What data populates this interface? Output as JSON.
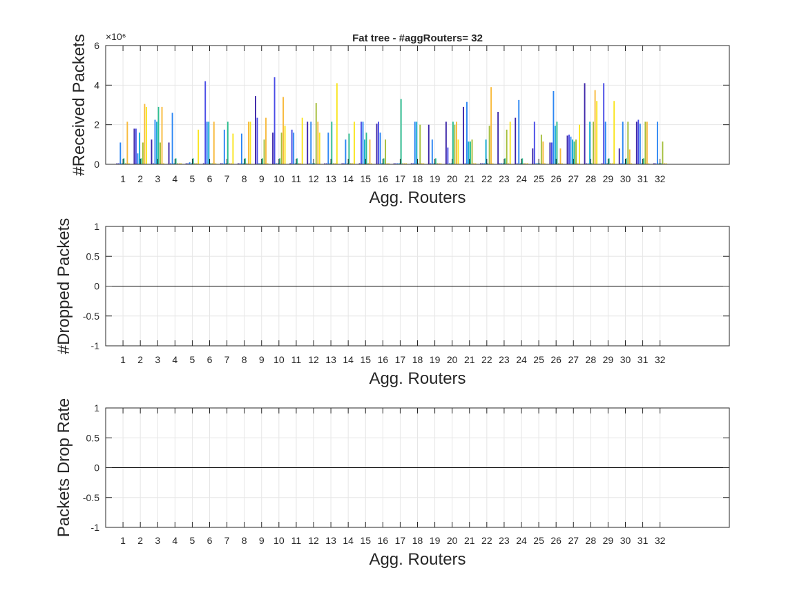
{
  "chart_data": [
    {
      "type": "bar",
      "title": "Fat tree -  #aggRouters= 32",
      "xlabel": "Agg. Routers",
      "ylabel": "#Received Packets",
      "y_exponent_label": "×10⁶",
      "categories": [
        "1",
        "2",
        "3",
        "4",
        "5",
        "6",
        "7",
        "8",
        "9",
        "10",
        "11",
        "12",
        "13",
        "14",
        "15",
        "16",
        "17",
        "18",
        "19",
        "20",
        "21",
        "22",
        "23",
        "24",
        "25",
        "26",
        "27",
        "28",
        "29",
        "30",
        "31",
        "32"
      ],
      "xlim": [
        0,
        36
      ],
      "ylim": [
        0,
        6
      ],
      "yticks": [
        0,
        2,
        4,
        6
      ],
      "ytick_labels": [
        "0",
        "2",
        "4",
        "6"
      ],
      "grid": true,
      "series_colors": [
        "#3d26a8",
        "#4a4de6",
        "#2c86f3",
        "#12aed4",
        "#2ebf92",
        "#a4be3a",
        "#f8ba3c",
        "#f9e51f"
      ],
      "values": [
        [
          0.05,
          0.05,
          1.1,
          0.05,
          0.3,
          0.05,
          2.15,
          0.05
        ],
        [
          1.8,
          1.8,
          0.55,
          1.6,
          0.3,
          1.1,
          3.05,
          2.9
        ],
        [
          1.25,
          0.05,
          2.25,
          2.15,
          2.9,
          1.1,
          2.9,
          0.05
        ],
        [
          1.1,
          0.05,
          2.6,
          0.05,
          0.3,
          0.05,
          0.05,
          0.05
        ],
        [
          0.05,
          0.05,
          0.1,
          0.05,
          0.3,
          0.05,
          0.05,
          1.75
        ],
        [
          0.05,
          4.2,
          2.15,
          2.15,
          0.05,
          0.05,
          2.15,
          0.05
        ],
        [
          0.05,
          0.05,
          1.75,
          0.05,
          2.15,
          0.05,
          0.05,
          1.55
        ],
        [
          0.05,
          0.05,
          1.55,
          0.05,
          0.3,
          0.05,
          2.15,
          2.15
        ],
        [
          3.45,
          2.35,
          0.05,
          0.05,
          0.3,
          1.25,
          2.35,
          0.05
        ],
        [
          1.6,
          4.4,
          0.05,
          0.05,
          0.3,
          1.6,
          3.4,
          1.95
        ],
        [
          0.05,
          1.75,
          1.6,
          0.05,
          0.3,
          0.05,
          0.05,
          2.35
        ],
        [
          2.15,
          0.05,
          2.15,
          0.05,
          0.05,
          3.1,
          2.15,
          1.6
        ],
        [
          0.05,
          0.05,
          1.6,
          0.05,
          2.15,
          0.05,
          0.05,
          4.1
        ],
        [
          0.05,
          0.05,
          1.25,
          0.05,
          1.55,
          0.05,
          0.05,
          2.15
        ],
        [
          0.05,
          2.15,
          2.15,
          1.25,
          1.6,
          0.05,
          1.25,
          0.05
        ],
        [
          2.05,
          2.15,
          1.6,
          0.05,
          0.3,
          1.25,
          0.05,
          0.05
        ],
        [
          0.05,
          0.05,
          0.05,
          0.05,
          3.3,
          0.05,
          0.05,
          0.05
        ],
        [
          0.05,
          0.05,
          2.15,
          2.15,
          0.05,
          2.0,
          0.05,
          0.05
        ],
        [
          2.0,
          0.05,
          1.25,
          0.05,
          0.3,
          0.05,
          0.05,
          0.05
        ],
        [
          2.15,
          0.85,
          0.05,
          0.05,
          2.15,
          2.0,
          2.15,
          1.25
        ],
        [
          2.9,
          0.05,
          3.15,
          1.15,
          1.15,
          1.25,
          0.05,
          0.05
        ],
        [
          0.05,
          0.05,
          0.05,
          1.25,
          0.05,
          1.95,
          3.9,
          0.05
        ],
        [
          2.65,
          0.05,
          0.05,
          0.05,
          0.3,
          1.75,
          0.05,
          2.15
        ],
        [
          2.35,
          0.05,
          3.25,
          0.05,
          0.3,
          0.05,
          0.05,
          0.05
        ],
        [
          0.8,
          2.15,
          0.05,
          0.05,
          0.05,
          1.5,
          1.15,
          0.05
        ],
        [
          1.1,
          1.1,
          3.7,
          1.95,
          2.15,
          0.05,
          0.8,
          0.05
        ],
        [
          1.45,
          1.5,
          1.4,
          1.25,
          1.15,
          1.25,
          0.05,
          2.0
        ],
        [
          4.1,
          0.05,
          0.05,
          2.15,
          0.05,
          2.15,
          3.75,
          3.2
        ],
        [
          0.05,
          4.1,
          2.15,
          0.05,
          0.3,
          0.05,
          0.05,
          3.2
        ],
        [
          0.8,
          0.05,
          2.15,
          0.05,
          0.3,
          2.15,
          0.75,
          0.05
        ],
        [
          2.15,
          2.25,
          2.05,
          0.05,
          0.3,
          2.15,
          2.15,
          0.05
        ],
        [
          0.05,
          0.05,
          2.15,
          0.05,
          0.05,
          1.15,
          0.05,
          0.05
        ]
      ]
    },
    {
      "type": "bar",
      "xlabel": "Agg. Routers",
      "ylabel": "#Dropped Packets",
      "categories": [
        "1",
        "2",
        "3",
        "4",
        "5",
        "6",
        "7",
        "8",
        "9",
        "10",
        "11",
        "12",
        "13",
        "14",
        "15",
        "16",
        "17",
        "18",
        "19",
        "20",
        "21",
        "22",
        "23",
        "24",
        "25",
        "26",
        "27",
        "28",
        "29",
        "30",
        "31",
        "32"
      ],
      "xlim": [
        0,
        36
      ],
      "ylim": [
        -1,
        1
      ],
      "yticks": [
        -1,
        -0.5,
        0,
        0.5,
        1
      ],
      "ytick_labels": [
        "-1",
        "-0.5",
        "0",
        "0.5",
        "1"
      ],
      "grid": true,
      "values_all": 0
    },
    {
      "type": "bar",
      "xlabel": "Agg. Routers",
      "ylabel": "Packets Drop Rate",
      "categories": [
        "1",
        "2",
        "3",
        "4",
        "5",
        "6",
        "7",
        "8",
        "9",
        "10",
        "11",
        "12",
        "13",
        "14",
        "15",
        "16",
        "17",
        "18",
        "19",
        "20",
        "21",
        "22",
        "23",
        "24",
        "25",
        "26",
        "27",
        "28",
        "29",
        "30",
        "31",
        "32"
      ],
      "xlim": [
        0,
        36
      ],
      "ylim": [
        -1,
        1
      ],
      "yticks": [
        -1,
        -0.5,
        0,
        0.5,
        1
      ],
      "ytick_labels": [
        "-1",
        "-0.5",
        "0",
        "0.5",
        "1"
      ],
      "grid": true,
      "values_all": 0
    }
  ]
}
